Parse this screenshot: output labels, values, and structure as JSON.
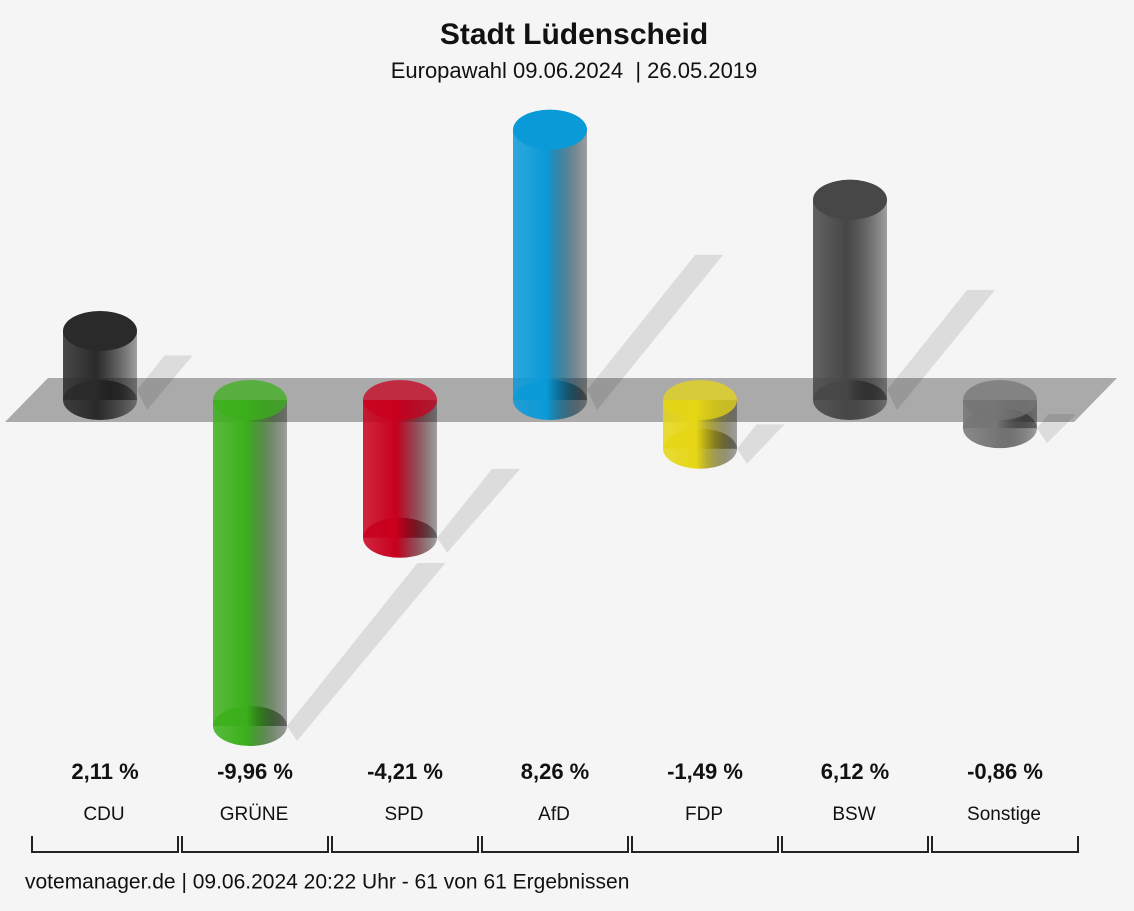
{
  "chart_data": {
    "type": "bar",
    "title": "Stadt Lüdenscheid",
    "subtitle": "Europawahl 09.06.2024  | 26.05.2019",
    "categories": [
      "CDU",
      "GRÜNE",
      "SPD",
      "AfD",
      "FDP",
      "BSW",
      "Sonstige"
    ],
    "values": [
      2.11,
      -9.96,
      -4.21,
      8.26,
      -1.49,
      6.12,
      -0.86
    ],
    "value_labels": [
      "2,11 %",
      "-9,96 %",
      "-4,21 %",
      "8,26 %",
      "-1,49 %",
      "6,12 %",
      "-0,86 %"
    ],
    "colors": [
      "#2a2a2a",
      "#3cb01c",
      "#c8001e",
      "#0a9ad8",
      "#e6d616",
      "#474747",
      "#767676"
    ],
    "footer": "votemanager.de | 09.06.2024 20:22 Uhr - 61 von 61 Ergebnissen"
  }
}
